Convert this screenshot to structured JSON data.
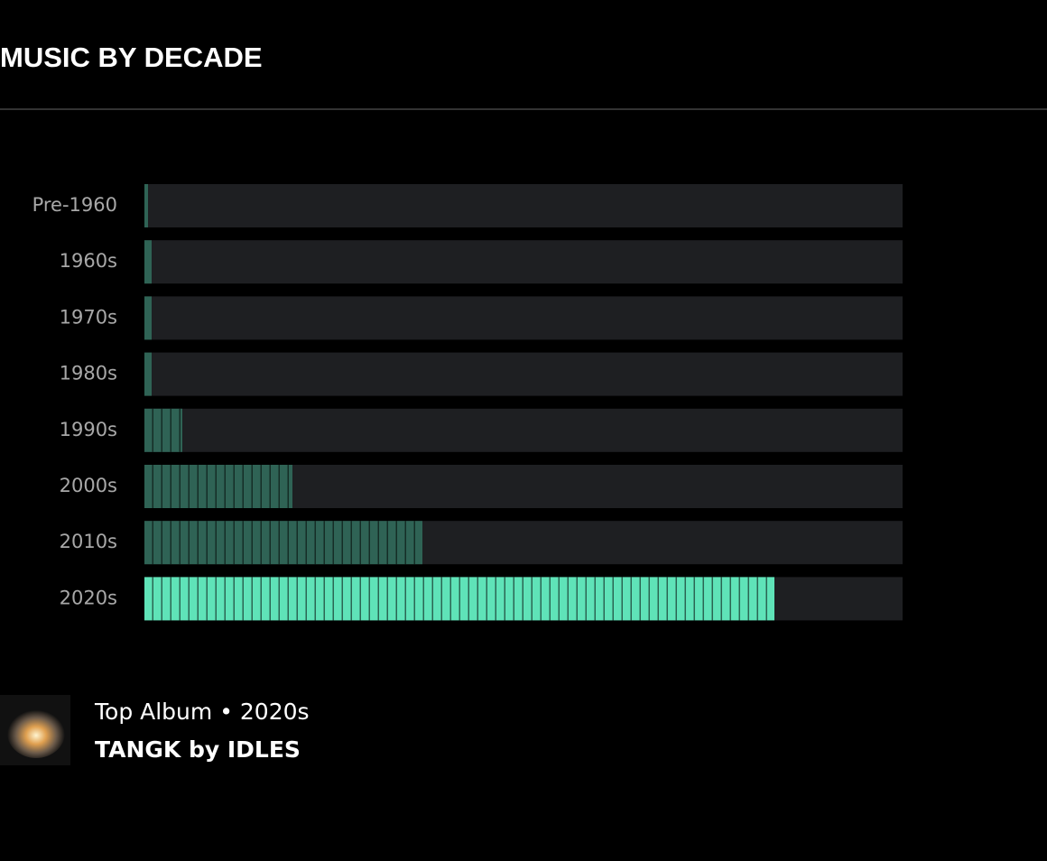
{
  "header": {
    "title": "MUSIC BY DECADE"
  },
  "chart_data": {
    "type": "bar",
    "orientation": "horizontal",
    "categories": [
      "Pre-1960",
      "1960s",
      "1970s",
      "1980s",
      "1990s",
      "2000s",
      "2010s",
      "2020s"
    ],
    "values": [
      0.4,
      0.8,
      0.8,
      0.8,
      4.2,
      16.4,
      30.8,
      69.8
    ],
    "colors": [
      "#2f6355",
      "#2f6355",
      "#2f6355",
      "#2f6355",
      "#2f6355",
      "#2f6355",
      "#2f6355",
      "#5fe3b8"
    ],
    "track_color": "#1e1f22",
    "xlim": [
      0,
      84
    ]
  },
  "top_album": {
    "caption": "Top Album • 2020s",
    "title": "TANGK by IDLES"
  }
}
